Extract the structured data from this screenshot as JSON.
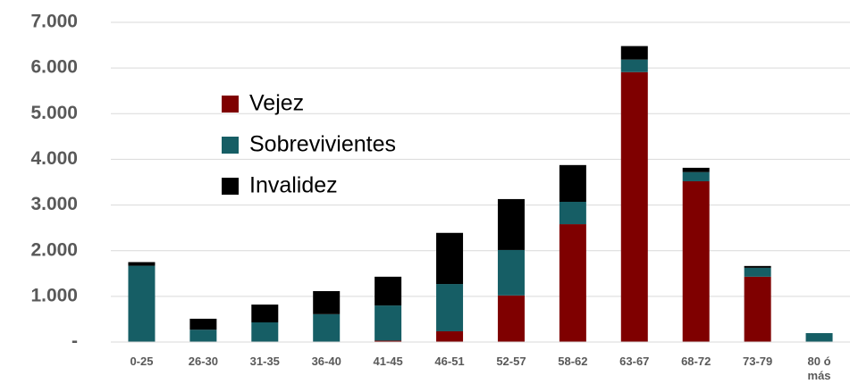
{
  "chart_data": {
    "type": "stacked-bar",
    "categories": [
      "0-25",
      "26-30",
      "31-35",
      "36-40",
      "41-45",
      "46-51",
      "52-57",
      "58-62",
      "63-67",
      "68-72",
      "73-79",
      "80 ó\nmás"
    ],
    "series": [
      {
        "name": "Vejez",
        "color": "#7f0000",
        "values": [
          0,
          0,
          0,
          0,
          30,
          235,
          1020,
          2580,
          5910,
          3520,
          1430,
          0
        ]
      },
      {
        "name": "Sobrevivientes",
        "color": "#165e65",
        "values": [
          1670,
          270,
          430,
          610,
          770,
          1035,
          995,
          490,
          275,
          200,
          195,
          195
        ]
      },
      {
        "name": "Invalidez",
        "color": "#000000",
        "values": [
          80,
          240,
          390,
          505,
          630,
          1120,
          1115,
          805,
          295,
          95,
          40,
          0
        ]
      }
    ],
    "ylim": [
      0,
      7000
    ],
    "yticks": [
      {
        "value": 0,
        "label": "-"
      },
      {
        "value": 1000,
        "label": "1.000"
      },
      {
        "value": 2000,
        "label": "2.000"
      },
      {
        "value": 3000,
        "label": "3.000"
      },
      {
        "value": 4000,
        "label": "4.000"
      },
      {
        "value": 5000,
        "label": "5.000"
      },
      {
        "value": 6000,
        "label": "6.000"
      },
      {
        "value": 7000,
        "label": "7.000"
      }
    ],
    "grid": true
  }
}
